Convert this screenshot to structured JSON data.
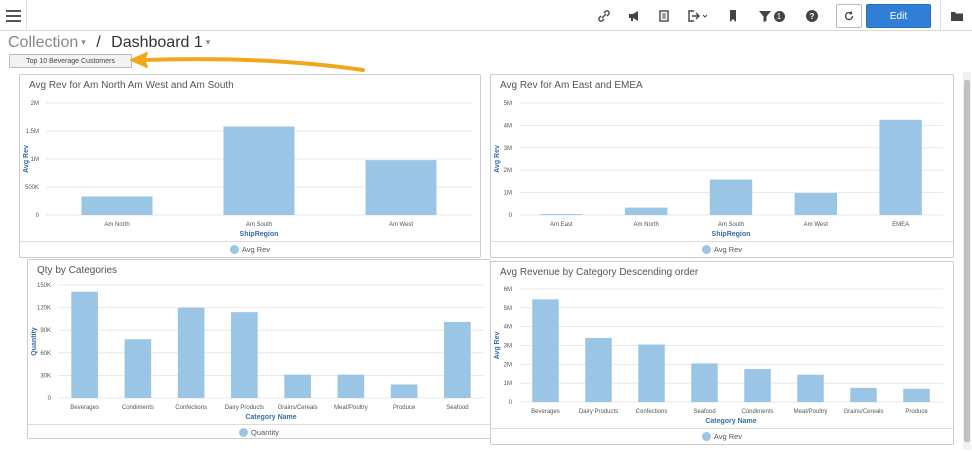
{
  "toolbar": {
    "edit_label": "Edit",
    "filter_badge": "1",
    "icons": [
      "link-icon",
      "announce-icon",
      "copy-icon",
      "export-icon",
      "bookmark-icon",
      "filter-icon",
      "help-icon",
      "refresh-icon",
      "folder-icon"
    ]
  },
  "breadcrumb": {
    "collection": "Collection",
    "separator": "/",
    "dashboard": "Dashboard 1"
  },
  "filter_button": {
    "label": "Top 10 Beverage Customers"
  },
  "colors": {
    "bar": "#9ac5e5",
    "accent": "#2f7fd6",
    "arrow": "#f0a81a",
    "axis_title": "#3a6ea5"
  },
  "panels": {
    "p1": {
      "title": "Avg Rev for Am North Am West and Am South",
      "legend": "Avg Rev"
    },
    "p2": {
      "title": "Avg Rev for Am East and EMEA",
      "legend": "Avg Rev"
    },
    "p3": {
      "title": "Qty by Categories",
      "legend": "Quantity"
    },
    "p4": {
      "title": "Avg Revenue by Category Descending order",
      "legend": "Avg Rev"
    }
  },
  "chart_data": [
    {
      "type": "bar",
      "title": "Avg Rev for Am North Am West and Am South",
      "categories": [
        "Am North",
        "Am South",
        "Am West"
      ],
      "values": [
        330000,
        1580000,
        980000
      ],
      "xlabel": "ShipRegion",
      "ylabel": "Avg Rev",
      "ylim": [
        0,
        2000000
      ],
      "yticks": [
        "0",
        "500K",
        "1M",
        "1.5M",
        "2M"
      ],
      "series": [
        {
          "name": "Avg Rev",
          "values": [
            330000,
            1580000,
            980000
          ]
        }
      ],
      "grid": true,
      "legend": "bottom"
    },
    {
      "type": "bar",
      "title": "Avg Rev for Am East and EMEA",
      "categories": [
        "Am East",
        "Am North",
        "Am South",
        "Am West",
        "EMEA"
      ],
      "values": [
        40000,
        330000,
        1580000,
        980000,
        4250000
      ],
      "xlabel": "ShipRegion",
      "ylabel": "Avg Rev",
      "ylim": [
        0,
        5000000
      ],
      "yticks": [
        "0",
        "1M",
        "2M",
        "3M",
        "4M",
        "5M"
      ],
      "series": [
        {
          "name": "Avg Rev",
          "values": [
            40000,
            330000,
            1580000,
            980000,
            4250000
          ]
        }
      ],
      "grid": true,
      "legend": "bottom"
    },
    {
      "type": "bar",
      "title": "Qty by Categories",
      "categories": [
        "Beverages",
        "Condiments",
        "Confections",
        "Dairy Products",
        "Grains/Cereals",
        "Meat/Poultry",
        "Produce",
        "Seafood"
      ],
      "values": [
        141000,
        78000,
        120000,
        114000,
        31000,
        31000,
        18000,
        101000
      ],
      "xlabel": "Category Name",
      "ylabel": "Quantity",
      "ylim": [
        0,
        150000
      ],
      "yticks": [
        "0",
        "30K",
        "60K",
        "90K",
        "120K",
        "150K"
      ],
      "series": [
        {
          "name": "Quantity",
          "values": [
            141000,
            78000,
            120000,
            114000,
            31000,
            31000,
            18000,
            101000
          ]
        }
      ],
      "grid": true,
      "legend": "bottom"
    },
    {
      "type": "bar",
      "title": "Avg Revenue by Category Descending order",
      "categories": [
        "Beverages",
        "Dairy Products",
        "Confections",
        "Seafood",
        "Condiments",
        "Meat/Poultry",
        "Grains/Cereals",
        "Produce"
      ],
      "values": [
        5450000,
        3400000,
        3050000,
        2050000,
        1750000,
        1450000,
        750000,
        700000
      ],
      "xlabel": "Category Name",
      "ylabel": "Avg Rev",
      "ylim": [
        0,
        6000000
      ],
      "yticks": [
        "0",
        "1M",
        "2M",
        "3M",
        "4M",
        "5M",
        "6M"
      ],
      "series": [
        {
          "name": "Avg Rev",
          "values": [
            5450000,
            3400000,
            3050000,
            2050000,
            1750000,
            1450000,
            750000,
            700000
          ]
        }
      ],
      "grid": true,
      "legend": "bottom"
    }
  ]
}
